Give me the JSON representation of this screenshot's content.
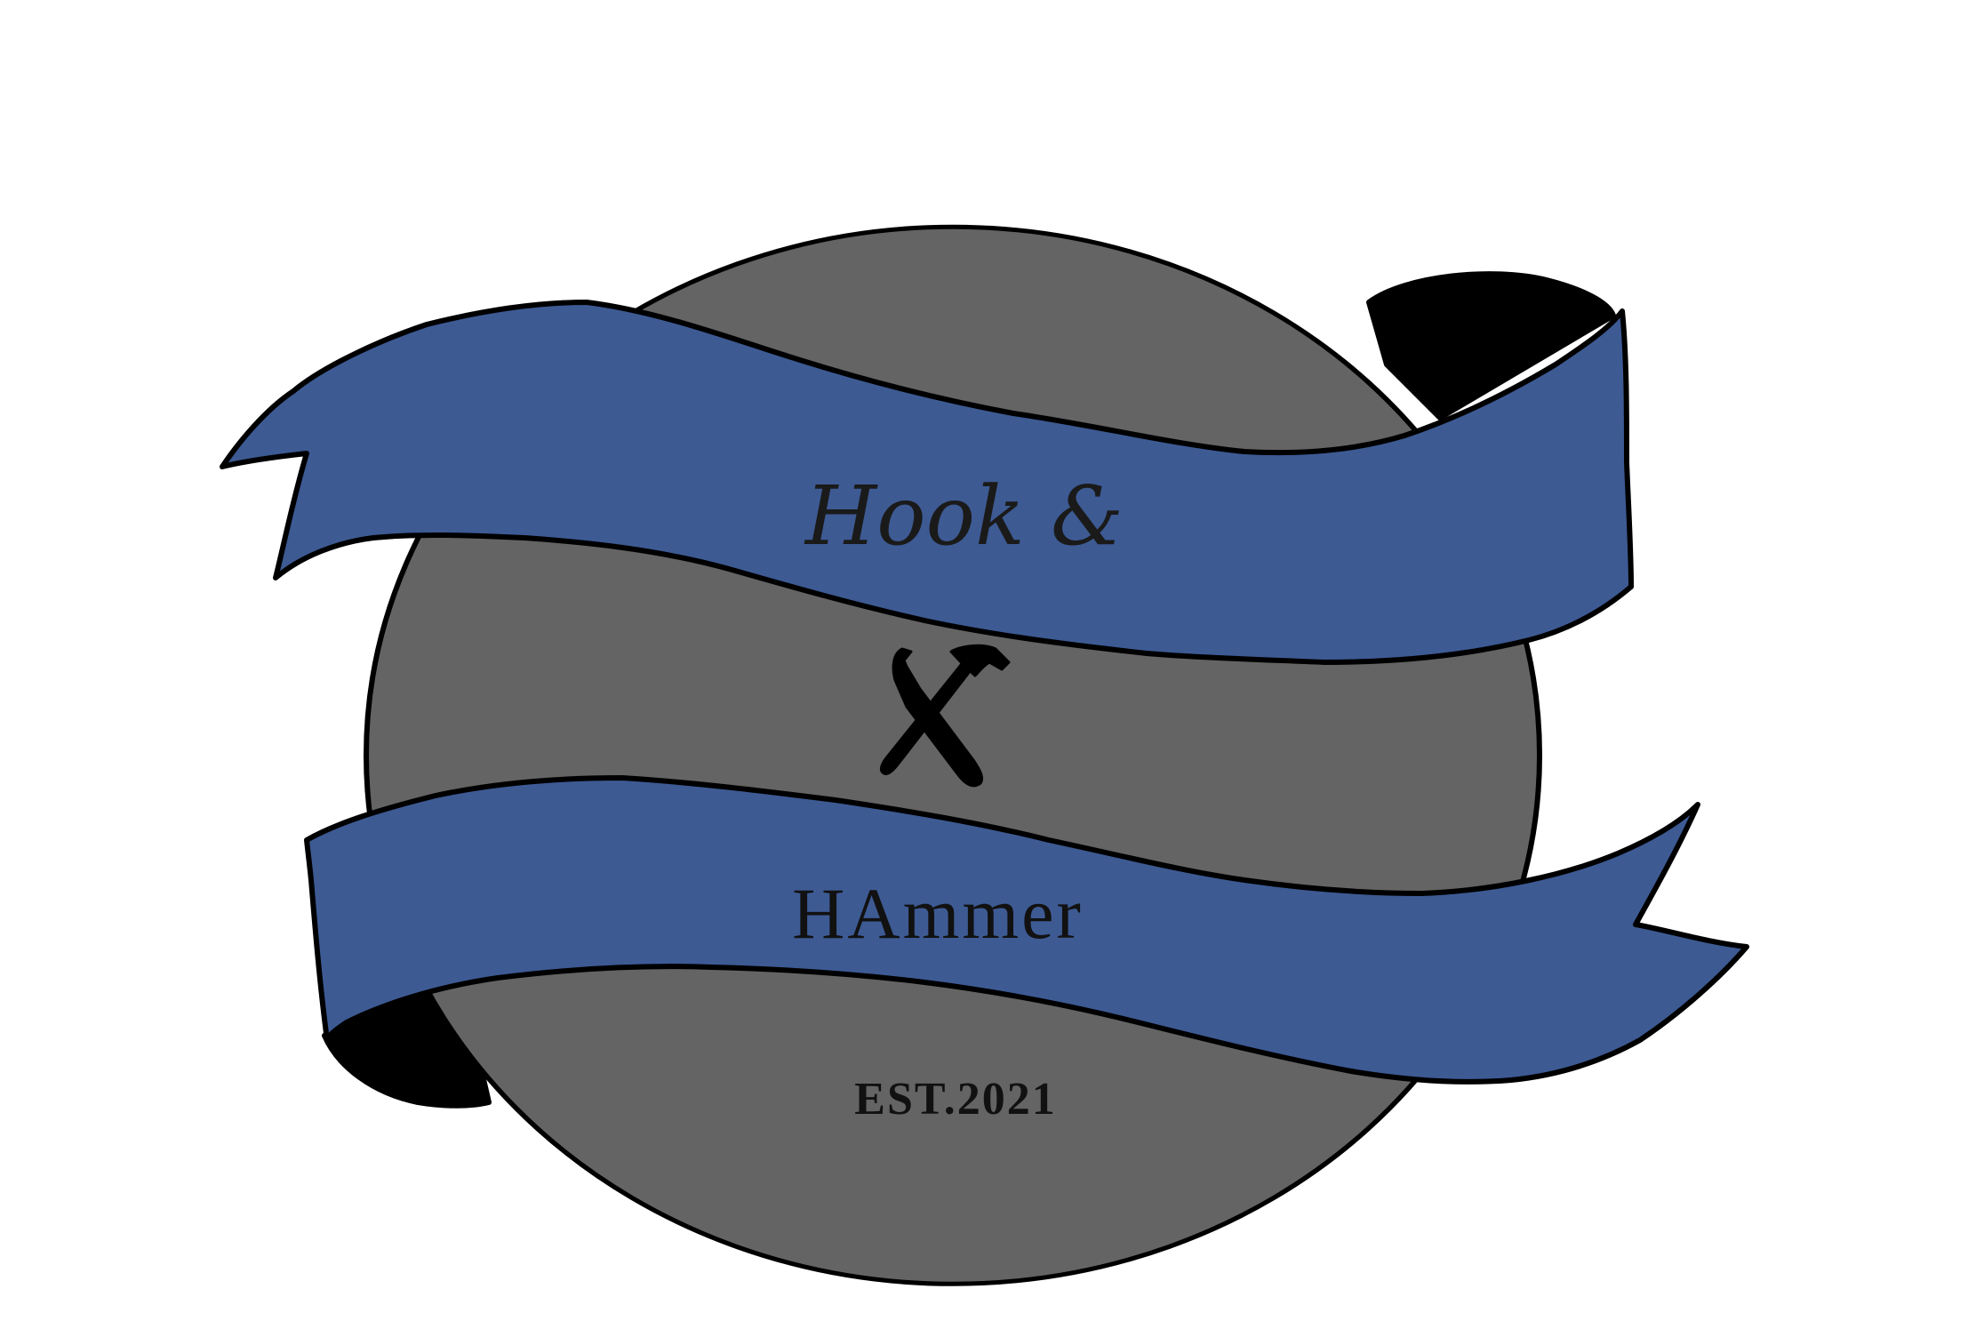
{
  "logo": {
    "line_1": "Hook &",
    "line_2": "HAmmer",
    "established": "EST.2021",
    "emblem_icon": "crossed-hook-and-hammer-icon"
  },
  "colors": {
    "background": "#ffffff",
    "disc": "#646464",
    "ribbon": "#3d5a93",
    "ribbon_fold": "#000000",
    "outline": "#000000",
    "text": "#111111"
  }
}
